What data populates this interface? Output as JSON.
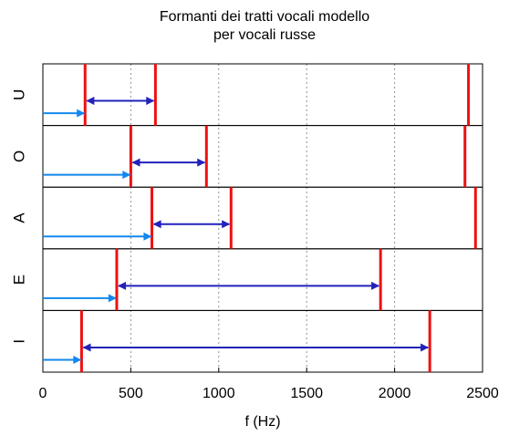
{
  "chart_data": {
    "type": "line",
    "title": [
      "Formanti dei tratti vocali modello",
      "per vocali russe"
    ],
    "xlabel": "f (Hz)",
    "xlim": [
      0,
      2500
    ],
    "xticks": [
      0,
      500,
      1000,
      1500,
      2000,
      2500
    ],
    "xtick_labels": [
      "0",
      "500",
      "1000",
      "1500",
      "2000",
      "2500"
    ],
    "grid_x": true,
    "vowels": [
      {
        "label": "U",
        "formants": [
          240,
          640,
          2420
        ]
      },
      {
        "label": "O",
        "formants": [
          500,
          930,
          2400
        ]
      },
      {
        "label": "A",
        "formants": [
          620,
          1070,
          2460
        ]
      },
      {
        "label": "E",
        "formants": [
          420,
          1920
        ]
      },
      {
        "label": "I",
        "formants": [
          220,
          2200
        ]
      }
    ],
    "colors": {
      "formant_line": "#ee1111",
      "f1_arrow": "#1388ee",
      "f1_f2_arrow": "#2222bb",
      "grid": "#909090",
      "frame": "#000000"
    }
  }
}
